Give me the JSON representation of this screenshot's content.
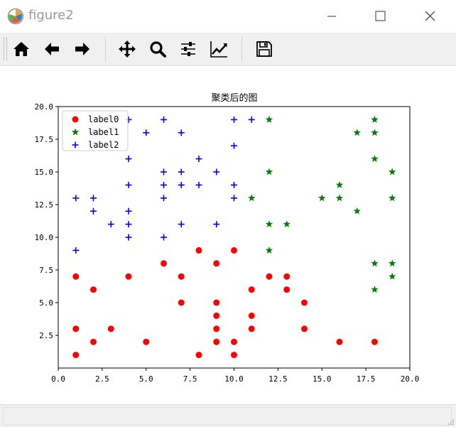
{
  "window": {
    "title": "figure2",
    "icons": [
      "matplotlib-icon",
      "minimize-icon",
      "maximize-icon",
      "close-icon"
    ]
  },
  "toolbar": {
    "buttons": [
      {
        "name": "home-button",
        "icon": "home-icon"
      },
      {
        "name": "back-button",
        "icon": "arrow-left-icon"
      },
      {
        "name": "forward-button",
        "icon": "arrow-right-icon"
      },
      {
        "name": "pan-button",
        "icon": "move-icon"
      },
      {
        "name": "zoom-button",
        "icon": "magnifier-icon"
      },
      {
        "name": "configure-subplots-button",
        "icon": "sliders-icon"
      },
      {
        "name": "edit-axis-button",
        "icon": "line-chart-icon"
      },
      {
        "name": "save-button",
        "icon": "floppy-disk-icon"
      }
    ]
  },
  "chart_data": {
    "type": "scatter",
    "title": "聚类后的图",
    "xlabel": "",
    "ylabel": "",
    "xlim": [
      0,
      20
    ],
    "ylim": [
      0,
      20
    ],
    "xticks": [
      "0.0",
      "2.5",
      "5.0",
      "7.5",
      "10.0",
      "12.5",
      "15.0",
      "17.5",
      "20.0"
    ],
    "yticks": [
      "2.5",
      "5.0",
      "7.5",
      "10.0",
      "12.5",
      "15.0",
      "17.5",
      "20.0"
    ],
    "grid": false,
    "legend_position": "top-left",
    "series": [
      {
        "name": "label0",
        "color": "#ff0000",
        "marker": "circle",
        "points": [
          [
            1,
            1
          ],
          [
            1,
            3
          ],
          [
            1,
            7
          ],
          [
            2,
            2
          ],
          [
            2,
            6
          ],
          [
            3,
            3
          ],
          [
            4,
            7
          ],
          [
            5,
            2
          ],
          [
            6,
            8
          ],
          [
            7,
            5
          ],
          [
            7,
            7
          ],
          [
            8,
            1
          ],
          [
            8,
            9
          ],
          [
            9,
            2
          ],
          [
            9,
            3
          ],
          [
            9,
            4
          ],
          [
            9,
            5
          ],
          [
            9,
            8
          ],
          [
            10,
            1
          ],
          [
            10,
            2
          ],
          [
            10,
            9
          ],
          [
            11,
            3
          ],
          [
            11,
            4
          ],
          [
            11,
            6
          ],
          [
            12,
            7
          ],
          [
            13,
            6
          ],
          [
            13,
            7
          ],
          [
            14,
            3
          ],
          [
            14,
            5
          ],
          [
            16,
            2
          ],
          [
            18,
            2
          ]
        ]
      },
      {
        "name": "label1",
        "color": "#008000",
        "marker": "star",
        "points": [
          [
            11,
            13
          ],
          [
            12,
            9
          ],
          [
            12,
            11
          ],
          [
            12,
            15
          ],
          [
            12,
            19
          ],
          [
            13,
            11
          ],
          [
            15,
            13
          ],
          [
            16,
            13
          ],
          [
            16,
            14
          ],
          [
            17,
            12
          ],
          [
            17,
            18
          ],
          [
            18,
            6
          ],
          [
            18,
            8
          ],
          [
            18,
            16
          ],
          [
            18,
            18
          ],
          [
            18,
            19
          ],
          [
            19,
            7
          ],
          [
            19,
            8
          ],
          [
            19,
            13
          ],
          [
            19,
            15
          ]
        ]
      },
      {
        "name": "label2",
        "color": "#0000ff",
        "marker": "plus",
        "points": [
          [
            1,
            9
          ],
          [
            1,
            13
          ],
          [
            2,
            12
          ],
          [
            2,
            13
          ],
          [
            2,
            18
          ],
          [
            3,
            11
          ],
          [
            4,
            10
          ],
          [
            4,
            11
          ],
          [
            4,
            12
          ],
          [
            4,
            14
          ],
          [
            4,
            16
          ],
          [
            4,
            19
          ],
          [
            5,
            18
          ],
          [
            6,
            10
          ],
          [
            6,
            13
          ],
          [
            6,
            14
          ],
          [
            6,
            15
          ],
          [
            6,
            19
          ],
          [
            7,
            11
          ],
          [
            7,
            14
          ],
          [
            7,
            15
          ],
          [
            7,
            18
          ],
          [
            8,
            14
          ],
          [
            8,
            16
          ],
          [
            9,
            11
          ],
          [
            9,
            15
          ],
          [
            10,
            13
          ],
          [
            10,
            14
          ],
          [
            10,
            17
          ],
          [
            10,
            19
          ],
          [
            11,
            19
          ]
        ]
      }
    ]
  }
}
